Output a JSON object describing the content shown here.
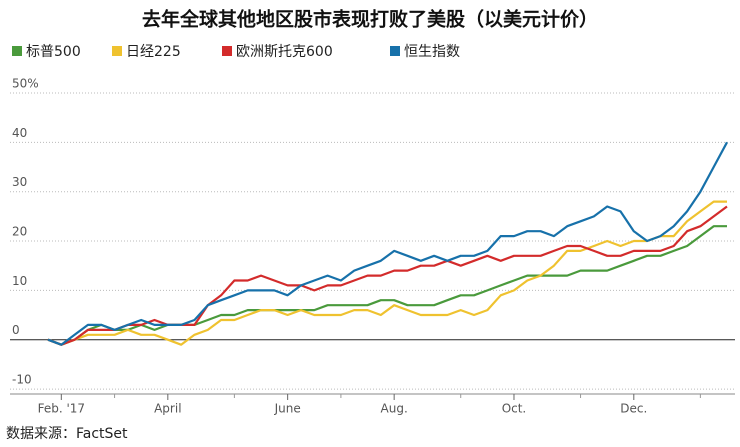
{
  "chart_data": {
    "type": "line",
    "title": "去年全球其他地区股市表现打败了美股（以美元计价）",
    "source": "数据来源：FactSet",
    "categories": [
      null,
      "Feb. '17",
      null,
      null,
      null,
      null,
      null,
      null,
      null,
      "April",
      null,
      null,
      null,
      null,
      null,
      null,
      null,
      null,
      "June",
      null,
      null,
      null,
      null,
      null,
      null,
      null,
      "Aug.",
      null,
      null,
      null,
      null,
      null,
      null,
      null,
      null,
      "Oct.",
      null,
      null,
      null,
      null,
      null,
      null,
      null,
      null,
      "Dec.",
      null,
      null,
      null,
      null,
      null,
      null,
      null
    ],
    "series": [
      {
        "name": "标普500",
        "color": "#4a9a3c",
        "values": [
          0,
          -1,
          0,
          2,
          3,
          2,
          2,
          3,
          2,
          3,
          3,
          3,
          4,
          5,
          5,
          6,
          6,
          6,
          6,
          6,
          6,
          7,
          7,
          7,
          7,
          8,
          8,
          7,
          7,
          7,
          8,
          9,
          9,
          10,
          11,
          12,
          13,
          13,
          13,
          13,
          14,
          14,
          14,
          15,
          16,
          17,
          17,
          18,
          19,
          21,
          23,
          23
        ]
      },
      {
        "name": "日经225",
        "color": "#efc22f",
        "values": [
          0,
          -1,
          0,
          1,
          1,
          1,
          2,
          1,
          1,
          0,
          -1,
          1,
          2,
          4,
          4,
          5,
          6,
          6,
          5,
          6,
          5,
          5,
          5,
          6,
          6,
          5,
          7,
          6,
          5,
          5,
          5,
          6,
          5,
          6,
          9,
          10,
          12,
          13,
          15,
          18,
          18,
          19,
          20,
          19,
          20,
          20,
          21,
          21,
          24,
          26,
          28,
          28
        ]
      },
      {
        "name": "欧洲斯托克600",
        "color": "#d32b2b",
        "values": [
          0,
          -1,
          0,
          2,
          2,
          2,
          3,
          3,
          4,
          3,
          3,
          3,
          7,
          9,
          12,
          12,
          13,
          12,
          11,
          11,
          10,
          11,
          11,
          12,
          13,
          13,
          14,
          14,
          15,
          15,
          16,
          15,
          16,
          17,
          16,
          17,
          17,
          17,
          18,
          19,
          19,
          18,
          17,
          17,
          18,
          18,
          18,
          19,
          22,
          23,
          25,
          27
        ]
      },
      {
        "name": "恒生指数",
        "color": "#1771aa",
        "values": [
          0,
          -1,
          1,
          3,
          3,
          2,
          3,
          4,
          3,
          3,
          3,
          4,
          7,
          8,
          9,
          10,
          10,
          10,
          9,
          11,
          12,
          13,
          12,
          14,
          15,
          16,
          18,
          17,
          16,
          17,
          16,
          17,
          17,
          18,
          21,
          21,
          22,
          22,
          21,
          23,
          24,
          25,
          27,
          26,
          22,
          20,
          21,
          23,
          26,
          30,
          35,
          40
        ]
      }
    ],
    "ylim": [
      -11,
      50
    ],
    "yticks": [
      -10,
      0,
      10,
      20,
      30,
      {
        "value": 40,
        "label": "40"
      },
      {
        "value": 50,
        "label": "50%"
      }
    ],
    "grid": true
  }
}
